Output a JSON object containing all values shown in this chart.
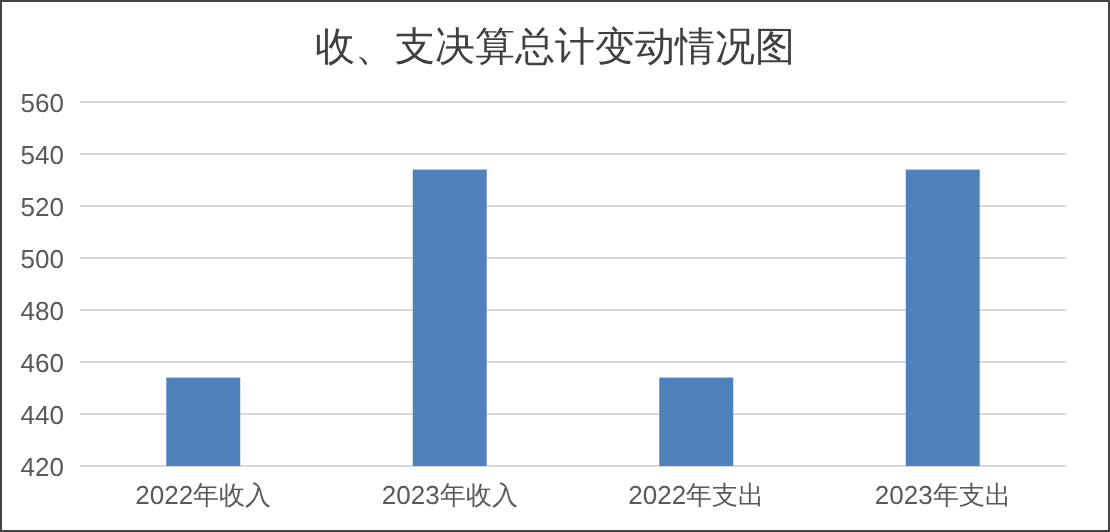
{
  "chart_data": {
    "type": "bar",
    "title": "收、支决算总计变动情况图",
    "categories": [
      "2022年收入",
      "2023年收入",
      "2022年支出",
      "2023年支出"
    ],
    "values": [
      454,
      534,
      454,
      534
    ],
    "color": "#4f81bd",
    "ylim": [
      420,
      560
    ],
    "yticks": [
      420,
      440,
      460,
      480,
      500,
      520,
      540,
      560
    ],
    "grid": "y"
  }
}
